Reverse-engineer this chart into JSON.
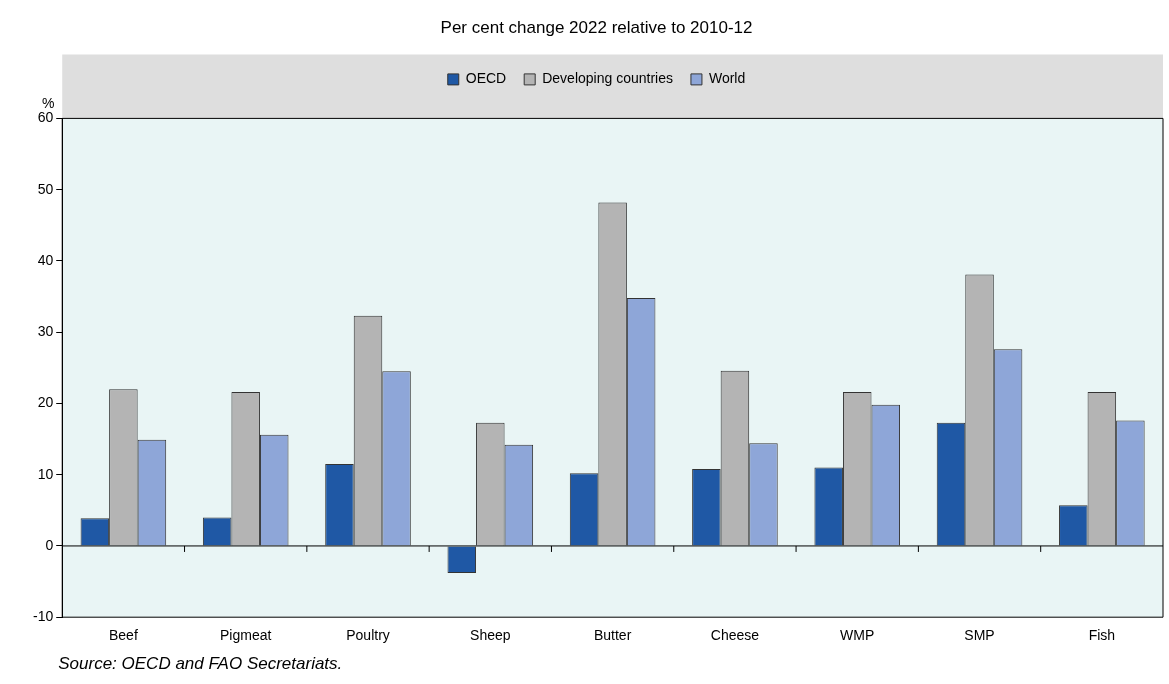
{
  "chart_data": {
    "type": "bar",
    "title": "Per cent change 2022 relative to 2010-12",
    "ylabel": "%",
    "categories": [
      "Beef",
      "Pigmeat",
      "Poultry",
      "Sheep",
      "Butter",
      "Cheese",
      "WMP",
      "SMP",
      "Fish"
    ],
    "series": [
      {
        "name": "OECD",
        "color": "#1f58a5",
        "values": [
          3.9,
          4.0,
          11.5,
          -3.8,
          10.2,
          10.8,
          11.0,
          17.3,
          5.7
        ]
      },
      {
        "name": "Developing countries",
        "color": "#b4b4b4",
        "values": [
          22.0,
          21.6,
          32.3,
          17.3,
          48.2,
          24.6,
          21.6,
          38.1,
          21.6
        ]
      },
      {
        "name": "World",
        "color": "#8ea6d8",
        "values": [
          14.9,
          15.6,
          24.5,
          14.2,
          34.8,
          14.4,
          19.8,
          27.6,
          17.6
        ]
      }
    ],
    "ylim": [
      -10,
      60
    ],
    "yticks": [
      -10,
      0,
      10,
      20,
      30,
      40,
      50,
      60
    ],
    "legend": "top",
    "annotations": [
      "Source: OECD and FAO Secretariats."
    ]
  }
}
